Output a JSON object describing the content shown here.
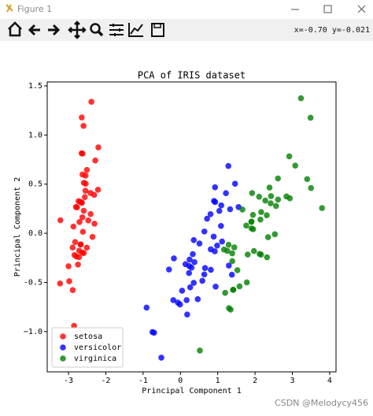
{
  "window": {
    "title": "Figure 1"
  },
  "toolbar": {
    "status": "x=-0.70 y=-0.021"
  },
  "watermark": "CSDN @Melodycy456",
  "chart_data": {
    "type": "scatter",
    "title": "PCA of IRIS dataset",
    "x_label": "Principal Component 1",
    "y_label": "Principal Component 2",
    "xlim": [
      -3.57,
      4.17
    ],
    "ylim": [
      -1.41,
      1.54
    ],
    "xticks": [
      -3,
      -2,
      -1,
      0,
      1,
      2,
      3,
      4
    ],
    "yticks": [
      {
        "value": -1,
        "label": "−1.0"
      },
      -0.5,
      {
        "value": 0,
        "label": "0.0"
      },
      0.5,
      {
        "value": 1,
        "label": "1.0"
      },
      1.5
    ],
    "legend": "lower left",
    "alpha": 0.8,
    "series": [
      {
        "name": "setosa",
        "color": "#ff0000",
        "x": [
          -2.684,
          -2.714,
          -2.889,
          -2.745,
          -2.729,
          -2.281,
          -2.821,
          -2.626,
          -2.886,
          -2.673,
          -2.507,
          -2.613,
          -2.787,
          -3.225,
          -2.644,
          -2.386,
          -2.623,
          -2.648,
          -2.2,
          -2.588,
          -2.31,
          -2.544,
          -3.216,
          -2.303,
          -2.356,
          -2.508,
          -2.469,
          -2.562,
          -2.64,
          -2.633,
          -2.587,
          -2.41,
          -2.648,
          -2.597,
          -2.673,
          -2.867,
          -2.625,
          -2.8,
          -2.98,
          -2.59,
          -2.77,
          -2.85,
          -2.998,
          -2.406,
          -2.209,
          -2.716,
          -2.538,
          -2.84,
          -2.542,
          -2.704
        ],
        "values": [
          0.319,
          -0.177,
          -0.145,
          -0.318,
          0.327,
          0.741,
          -0.089,
          0.163,
          -0.578,
          -0.114,
          0.645,
          0.015,
          -0.235,
          -0.511,
          1.179,
          1.338,
          0.811,
          0.312,
          0.874,
          0.514,
          0.391,
          0.433,
          0.133,
          0.098,
          -0.037,
          -0.146,
          0.131,
          0.368,
          0.312,
          -0.196,
          -0.201,
          0.41,
          0.814,
          1.093,
          -0.114,
          0.069,
          0.599,
          0.268,
          -0.488,
          0.229,
          0.264,
          -0.941,
          -0.335,
          0.196,
          0.443,
          -0.243,
          0.504,
          -0.221,
          0.587,
          0.115
        ]
      },
      {
        "name": "versicolor",
        "color": "#0000ff",
        "x": [
          1.285,
          0.932,
          1.464,
          0.181,
          1.087,
          0.64,
          1.095,
          -0.749,
          1.043,
          -0.01,
          -0.511,
          0.511,
          0.262,
          0.984,
          -0.174,
          0.928,
          0.66,
          0.236,
          0.944,
          0.045,
          1.116,
          0.358,
          1.298,
          0.921,
          0.715,
          0.9,
          1.332,
          1.558,
          0.813,
          -0.306,
          -0.068,
          -0.19,
          0.136,
          1.38,
          0.588,
          0.807,
          1.22,
          0.815,
          0.246,
          0.166,
          0.464,
          0.891,
          0.231,
          -0.705,
          0.357,
          0.332,
          0.376,
          0.642,
          -0.907,
          0.299
        ],
        "values": [
          0.685,
          0.318,
          0.504,
          -0.826,
          0.075,
          -0.418,
          0.284,
          -1.005,
          0.228,
          -0.724,
          -1.265,
          -0.104,
          -0.55,
          -0.125,
          -0.255,
          0.468,
          -0.353,
          -0.333,
          -0.543,
          -0.584,
          -0.084,
          -0.069,
          -0.328,
          -0.183,
          0.149,
          0.329,
          0.245,
          0.267,
          -0.163,
          -0.368,
          -0.705,
          -0.68,
          -0.314,
          -0.421,
          -0.484,
          0.195,
          0.408,
          -0.371,
          -0.267,
          -0.68,
          -0.67,
          -0.034,
          -0.404,
          -1.012,
          -0.504,
          -0.212,
          -0.293,
          0.018,
          -0.756,
          -0.349
        ]
      },
      {
        "name": "virginica",
        "color": "#008000",
        "x": [
          2.531,
          1.415,
          2.616,
          1.971,
          2.35,
          3.397,
          0.521,
          2.933,
          2.321,
          2.917,
          1.662,
          1.803,
          2.165,
          1.345,
          1.585,
          1.905,
          1.949,
          3.488,
          3.795,
          1.3,
          2.428,
          1.199,
          3.5,
          1.389,
          2.276,
          2.614,
          1.258,
          1.291,
          2.123,
          2.388,
          2.842,
          3.231,
          2.159,
          1.444,
          1.78,
          3.077,
          2.144,
          1.905,
          1.169,
          2.108,
          2.314,
          1.922,
          1.415,
          2.563,
          2.419,
          1.944,
          1.527,
          1.764,
          1.901,
          1.39
        ],
        "values": [
          -0.01,
          -0.575,
          0.343,
          -0.18,
          -0.04,
          0.551,
          -1.193,
          0.356,
          -0.244,
          0.783,
          0.242,
          -0.216,
          0.216,
          -0.776,
          -0.54,
          0.119,
          0.041,
          1.176,
          0.257,
          -0.761,
          0.378,
          -0.606,
          0.46,
          -0.204,
          0.333,
          0.558,
          -0.179,
          -0.117,
          -0.21,
          0.465,
          0.375,
          1.374,
          -0.217,
          -0.143,
          -0.5,
          0.689,
          0.14,
          0.05,
          -0.165,
          0.372,
          0.184,
          0.409,
          -0.575,
          0.278,
          0.305,
          0.188,
          -0.375,
          0.079,
          0.117,
          -0.283
        ]
      }
    ]
  }
}
